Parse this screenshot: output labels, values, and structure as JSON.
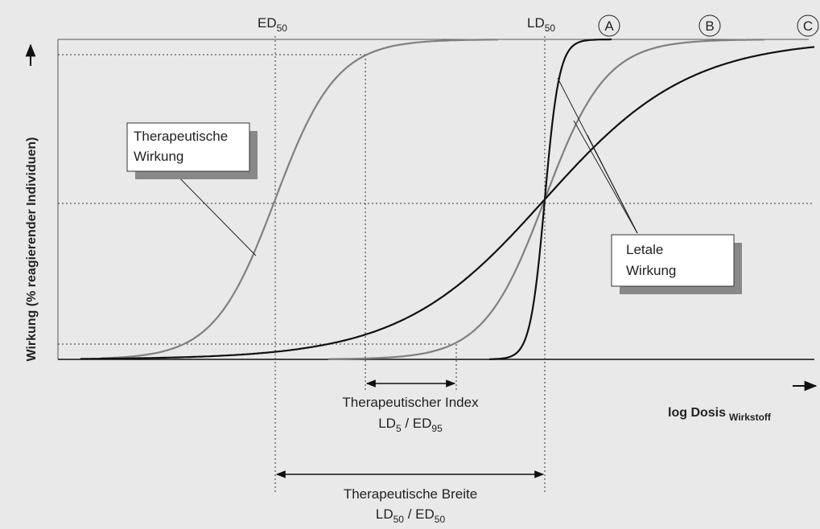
{
  "labels": {
    "ed50": {
      "text": "ED",
      "sub": "50"
    },
    "ld50": {
      "text": "LD",
      "sub": "50"
    }
  },
  "curves": [
    "A",
    "B",
    "C"
  ],
  "callouts": {
    "therapeutic": [
      "Therapeutische",
      "Wirkung"
    ],
    "lethal": [
      "Letale",
      "Wirkung"
    ]
  },
  "index": {
    "title": "Therapeutischer Index",
    "formula": [
      "LD",
      "5",
      " / ED",
      "95"
    ]
  },
  "width": {
    "title": "Therapeutische Breite",
    "formula": [
      "LD",
      "50",
      " / ED",
      "50"
    ]
  },
  "axes": {
    "y": "Wirkung (% reagierender Individuen)",
    "x": "log Dosis",
    "x_sub": "Wirkstoff"
  }
}
